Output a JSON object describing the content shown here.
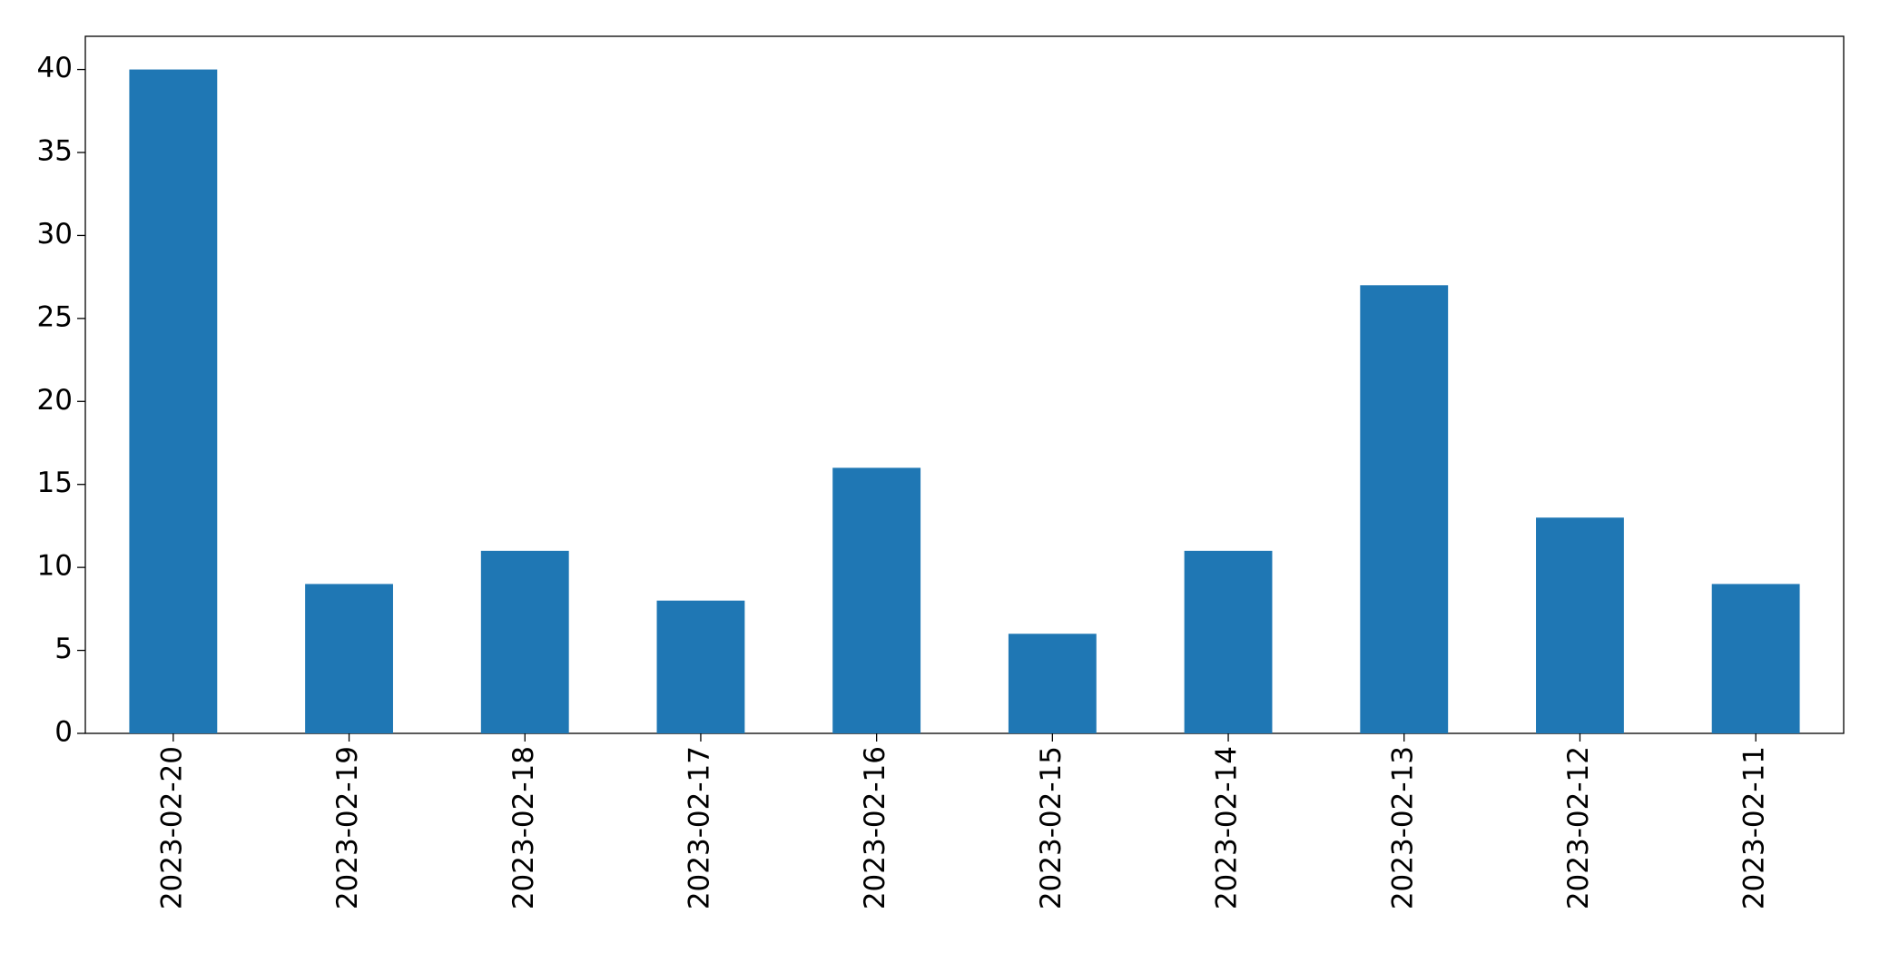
{
  "chart_data": {
    "type": "bar",
    "categories": [
      "2023-02-20",
      "2023-02-19",
      "2023-02-18",
      "2023-02-17",
      "2023-02-16",
      "2023-02-15",
      "2023-02-14",
      "2023-02-13",
      "2023-02-12",
      "2023-02-11"
    ],
    "values": [
      40,
      9,
      11,
      8,
      16,
      6,
      11,
      27,
      13,
      9
    ],
    "color": "#1f77b4",
    "ylim": [
      0,
      42
    ],
    "yticks": [
      0,
      5,
      10,
      15,
      20,
      25,
      30,
      35,
      40
    ],
    "grid": false
  }
}
